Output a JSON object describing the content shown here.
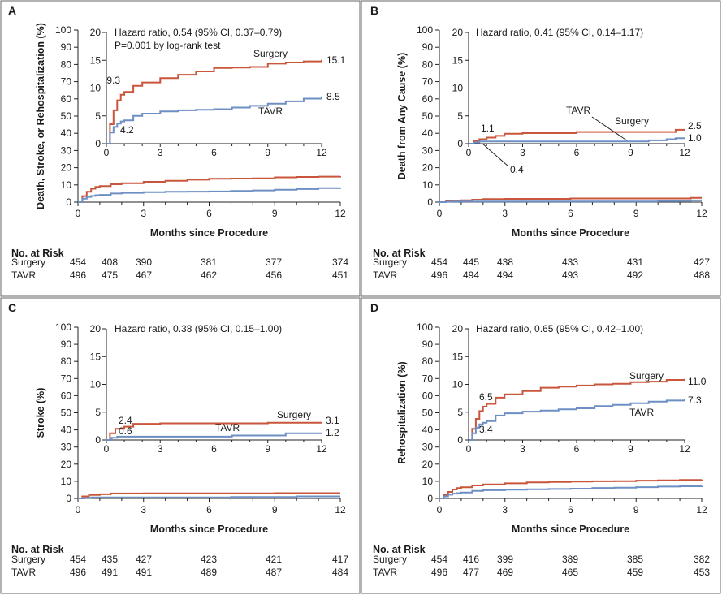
{
  "colors": {
    "surgery": "#c9563b",
    "tavr": "#6d8fc4"
  },
  "chart_data": [
    {
      "type": "line",
      "panel": "A",
      "ylabel": "Death, Stroke, or Rehospitalization (%)",
      "xlabel": "Months since Procedure",
      "xlim": [
        0,
        12
      ],
      "ylim": [
        0,
        100
      ],
      "xticks": [
        "0",
        "3",
        "6",
        "9",
        "12"
      ],
      "yticks": [
        "0",
        "10",
        "20",
        "30",
        "40",
        "50",
        "60",
        "70",
        "80",
        "90",
        "100"
      ],
      "inset": {
        "ylim": [
          0,
          20
        ],
        "xticks": [
          "0",
          "3",
          "6",
          "9",
          "12"
        ],
        "yticks": [
          "0",
          "5",
          "10",
          "15",
          "20"
        ]
      },
      "annotations": [
        "Hazard ratio, 0.54 (95% CI, 0.37–0.79)",
        "P=0.001 by log-rank test"
      ],
      "labels": {
        "surgery": "Surgery",
        "tavr": "TAVR"
      },
      "point_labels": {
        "surgery_1mo": "9.3",
        "tavr_1mo": "4.2",
        "surgery_12mo": "15.1",
        "tavr_12mo": "8.5"
      },
      "series": [
        {
          "name": "Surgery",
          "x": [
            0,
            0.2,
            0.4,
            0.6,
            0.8,
            1,
            1.5,
            2,
            3,
            4,
            5,
            6,
            7,
            8,
            9,
            10,
            11,
            12
          ],
          "values": [
            0,
            3.5,
            6,
            7.8,
            8.8,
            9.3,
            10.4,
            11,
            11.8,
            12.4,
            13,
            13.6,
            13.7,
            13.8,
            14.4,
            14.6,
            14.8,
            15.1
          ]
        },
        {
          "name": "TAVR",
          "x": [
            0,
            0.2,
            0.4,
            0.6,
            0.8,
            1,
            1.5,
            2,
            3,
            4,
            5,
            6,
            7,
            8,
            9,
            10,
            11,
            12
          ],
          "values": [
            0,
            2,
            3,
            3.6,
            4,
            4.2,
            5,
            5.4,
            5.8,
            6,
            6.1,
            6.2,
            6.5,
            6.8,
            7.2,
            7.6,
            8.1,
            8.5
          ]
        }
      ],
      "risk_table": {
        "title": "No. at Risk",
        "rows": [
          {
            "label": "Surgery",
            "values": [
              "454",
              "408",
              "390",
              "381",
              "377",
              "374"
            ]
          },
          {
            "label": "TAVR",
            "values": [
              "496",
              "475",
              "467",
              "462",
              "456",
              "451"
            ]
          }
        ]
      }
    },
    {
      "type": "line",
      "panel": "B",
      "ylabel": "Death from Any Cause (%)",
      "xlabel": "Months since Procedure",
      "xlim": [
        0,
        12
      ],
      "ylim": [
        0,
        100
      ],
      "xticks": [
        "0",
        "3",
        "6",
        "9",
        "12"
      ],
      "yticks": [
        "0",
        "10",
        "20",
        "30",
        "40",
        "50",
        "60",
        "70",
        "80",
        "90",
        "100"
      ],
      "inset": {
        "ylim": [
          0,
          20
        ],
        "xticks": [
          "0",
          "3",
          "6",
          "9",
          "12"
        ],
        "yticks": [
          "0",
          "5",
          "10",
          "15",
          "20"
        ]
      },
      "annotations": [
        "Hazard ratio, 0.41 (95% CI, 0.14–1.17)"
      ],
      "labels": {
        "surgery": "Surgery",
        "tavr": "TAVR"
      },
      "point_labels": {
        "surgery_1mo": "1.1",
        "tavr_1mo": "0.4",
        "surgery_12mo": "2.5",
        "tavr_12mo": "1.0"
      },
      "series": [
        {
          "name": "Surgery",
          "x": [
            0,
            0.3,
            0.6,
            1,
            1.5,
            2,
            3,
            5,
            6,
            7,
            9,
            11,
            11.5,
            12
          ],
          "values": [
            0,
            0.5,
            0.8,
            1.1,
            1.4,
            1.8,
            1.9,
            1.9,
            2.1,
            2.1,
            2.1,
            2.1,
            2.5,
            2.5
          ]
        },
        {
          "name": "TAVR",
          "x": [
            0,
            0.3,
            0.6,
            1,
            2,
            4,
            6,
            8,
            10,
            11,
            11.5,
            12
          ],
          "values": [
            0,
            0.2,
            0.4,
            0.4,
            0.4,
            0.4,
            0.4,
            0.4,
            0.6,
            0.8,
            1.0,
            1.0
          ]
        }
      ],
      "risk_table": {
        "title": "No. at Risk",
        "rows": [
          {
            "label": "Surgery",
            "values": [
              "454",
              "445",
              "438",
              "433",
              "431",
              "427"
            ]
          },
          {
            "label": "TAVR",
            "values": [
              "496",
              "494",
              "494",
              "493",
              "492",
              "488"
            ]
          }
        ]
      }
    },
    {
      "type": "line",
      "panel": "C",
      "ylabel": "Stroke (%)",
      "xlabel": "Months since Procedure",
      "xlim": [
        0,
        12
      ],
      "ylim": [
        0,
        100
      ],
      "xticks": [
        "0",
        "3",
        "6",
        "9",
        "12"
      ],
      "yticks": [
        "0",
        "10",
        "20",
        "30",
        "40",
        "50",
        "60",
        "70",
        "80",
        "90",
        "100"
      ],
      "inset": {
        "ylim": [
          0,
          20
        ],
        "xticks": [
          "0",
          "3",
          "6",
          "9",
          "12"
        ],
        "yticks": [
          "0",
          "5",
          "10",
          "15",
          "20"
        ]
      },
      "annotations": [
        "Hazard ratio, 0.38 (95% CI, 0.15–1.00)"
      ],
      "labels": {
        "surgery": "Surgery",
        "tavr": "TAVR"
      },
      "point_labels": {
        "surgery_1mo": "2.4",
        "tavr_1mo": "0.6",
        "surgery_12mo": "3.1",
        "tavr_12mo": "1.2"
      },
      "series": [
        {
          "name": "Surgery",
          "x": [
            0,
            0.2,
            0.5,
            1,
            1.5,
            3,
            6,
            9,
            12
          ],
          "values": [
            0,
            1.2,
            2,
            2.4,
            2.9,
            3.0,
            3.0,
            3.1,
            3.1
          ]
        },
        {
          "name": "TAVR",
          "x": [
            0,
            0.3,
            0.6,
            1,
            3,
            6,
            7,
            8,
            10,
            12
          ],
          "values": [
            0,
            0.4,
            0.6,
            0.6,
            0.6,
            0.6,
            0.8,
            0.8,
            1.2,
            1.2
          ]
        }
      ],
      "risk_table": {
        "title": "No. at Risk",
        "rows": [
          {
            "label": "Surgery",
            "values": [
              "454",
              "435",
              "427",
              "423",
              "421",
              "417"
            ]
          },
          {
            "label": "TAVR",
            "values": [
              "496",
              "491",
              "491",
              "489",
              "487",
              "484"
            ]
          }
        ]
      }
    },
    {
      "type": "line",
      "panel": "D",
      "ylabel": "Rehospitalization (%)",
      "xlabel": "Months since Procedure",
      "xlim": [
        0,
        12
      ],
      "ylim": [
        0,
        100
      ],
      "xticks": [
        "0",
        "3",
        "6",
        "9",
        "12"
      ],
      "yticks": [
        "0",
        "10",
        "20",
        "30",
        "40",
        "50",
        "60",
        "70",
        "80",
        "90",
        "100"
      ],
      "inset": {
        "ylim": [
          0,
          20
        ],
        "xticks": [
          "0",
          "3",
          "6",
          "9",
          "12"
        ],
        "yticks": [
          "0",
          "5",
          "10",
          "15",
          "20"
        ]
      },
      "annotations": [
        "Hazard ratio, 0.65 (95% CI, 0.42–1.00)"
      ],
      "labels": {
        "surgery": "Surgery",
        "tavr": "TAVR"
      },
      "point_labels": {
        "surgery_1mo": "6.5",
        "tavr_1mo": "3.4",
        "surgery_12mo": "11.0",
        "tavr_12mo": "7.3"
      },
      "series": [
        {
          "name": "Surgery",
          "x": [
            0,
            0.2,
            0.4,
            0.6,
            0.8,
            1,
            1.5,
            2,
            3,
            4,
            5,
            6,
            7,
            8,
            9,
            10,
            11,
            12
          ],
          "values": [
            0,
            2,
            3.8,
            5.2,
            6,
            6.5,
            7.6,
            8.2,
            8.8,
            9.4,
            9.6,
            9.8,
            10,
            10.1,
            10.4,
            10.5,
            10.8,
            11.0
          ]
        },
        {
          "name": "TAVR",
          "x": [
            0,
            0.2,
            0.4,
            0.6,
            0.8,
            1,
            1.5,
            2,
            3,
            4,
            5,
            6,
            7,
            8,
            9,
            10,
            11,
            12
          ],
          "values": [
            0,
            1.2,
            2.2,
            2.8,
            3.1,
            3.4,
            4.4,
            4.8,
            5.1,
            5.3,
            5.5,
            5.7,
            6.1,
            6.3,
            6.6,
            6.9,
            7.1,
            7.3
          ]
        }
      ],
      "risk_table": {
        "title": "No. at Risk",
        "rows": [
          {
            "label": "Surgery",
            "values": [
              "454",
              "416",
              "399",
              "389",
              "385",
              "382"
            ]
          },
          {
            "label": "TAVR",
            "values": [
              "496",
              "477",
              "469",
              "465",
              "459",
              "453"
            ]
          }
        ]
      }
    }
  ]
}
